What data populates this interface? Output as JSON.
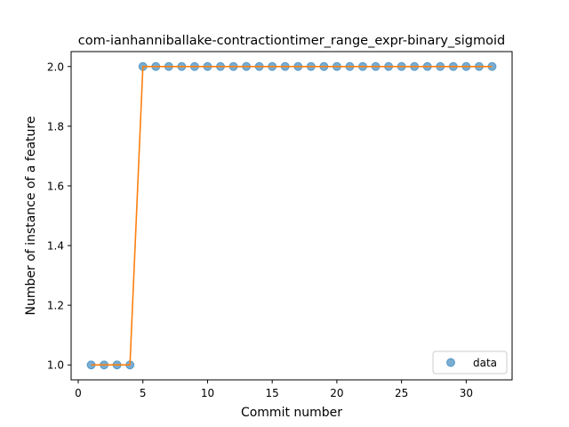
{
  "chart_data": {
    "type": "line",
    "title": "com-ianhanniballake-contractiontimer_range_expr-binary_sigmoid",
    "xlabel": "Commit number",
    "ylabel": "Number of instance of a feature",
    "xlim": [
      -0.55,
      33.55
    ],
    "ylim": [
      0.95,
      2.05
    ],
    "x_ticks": [
      0,
      5,
      10,
      15,
      20,
      25,
      30
    ],
    "y_ticks": [
      1.0,
      1.2,
      1.4,
      1.6,
      1.8,
      2.0
    ],
    "x_tick_labels": [
      "0",
      "5",
      "10",
      "15",
      "20",
      "25",
      "30"
    ],
    "y_tick_labels": [
      "1.0",
      "1.2",
      "1.4",
      "1.6",
      "1.8",
      "2.0"
    ],
    "grid": false,
    "legend_position": "lower-right",
    "series": [
      {
        "name": "data",
        "style": "markers",
        "color": "#1f77b4",
        "x": [
          1,
          2,
          3,
          4,
          5,
          6,
          7,
          8,
          9,
          10,
          11,
          12,
          13,
          14,
          15,
          16,
          17,
          18,
          19,
          20,
          21,
          22,
          23,
          24,
          25,
          26,
          27,
          28,
          29,
          30,
          31,
          32
        ],
        "values": [
          1,
          1,
          1,
          1,
          2,
          2,
          2,
          2,
          2,
          2,
          2,
          2,
          2,
          2,
          2,
          2,
          2,
          2,
          2,
          2,
          2,
          2,
          2,
          2,
          2,
          2,
          2,
          2,
          2,
          2,
          2,
          2
        ]
      },
      {
        "style": "line",
        "color": "#ff7f0e",
        "x": [
          1,
          2,
          3,
          4,
          5,
          6,
          7,
          8,
          9,
          10,
          11,
          12,
          13,
          14,
          15,
          16,
          17,
          18,
          19,
          20,
          21,
          22,
          23,
          24,
          25,
          26,
          27,
          28,
          29,
          30,
          31,
          32
        ],
        "values": [
          1,
          1,
          1,
          1,
          2,
          2,
          2,
          2,
          2,
          2,
          2,
          2,
          2,
          2,
          2,
          2,
          2,
          2,
          2,
          2,
          2,
          2,
          2,
          2,
          2,
          2,
          2,
          2,
          2,
          2,
          2,
          2
        ]
      }
    ]
  }
}
